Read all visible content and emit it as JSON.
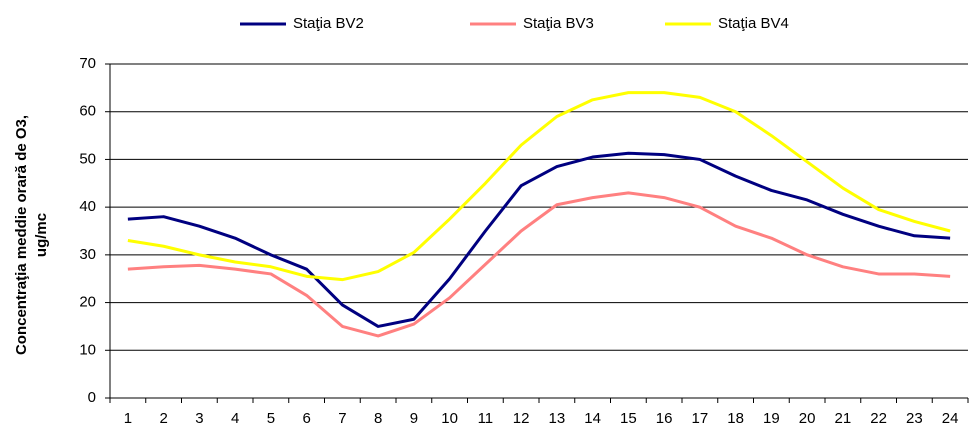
{
  "chart_data": {
    "type": "line",
    "y_label": [
      "Concentraţia meddie orară de O3,",
      "ug/mc"
    ],
    "categories": [
      "1",
      "2",
      "3",
      "4",
      "5",
      "6",
      "7",
      "8",
      "9",
      "10",
      "11",
      "12",
      "13",
      "14",
      "15",
      "16",
      "17",
      "18",
      "19",
      "20",
      "21",
      "22",
      "23",
      "24"
    ],
    "series": [
      {
        "name": "Staţia BV2",
        "color": "#000080",
        "values": [
          37.5,
          38,
          36,
          33.5,
          30,
          27,
          19.5,
          15,
          16.5,
          25,
          35,
          44.5,
          48.5,
          50.5,
          51.3,
          51,
          50,
          46.5,
          43.5,
          41.5,
          38.5,
          36,
          34,
          33.5
        ]
      },
      {
        "name": "Staţia BV3",
        "color": "#ff8080",
        "values": [
          27,
          27.5,
          27.8,
          27,
          26,
          21.5,
          15,
          13,
          15.5,
          21,
          28,
          35,
          40.5,
          42,
          43,
          42,
          40,
          36,
          33.5,
          30,
          27.5,
          26,
          26,
          25.5
        ]
      },
      {
        "name": "Staţia BV4",
        "color": "#ffff00",
        "values": [
          33,
          31.8,
          30,
          28.5,
          27.5,
          25.5,
          24.8,
          26.5,
          30.5,
          37.5,
          45,
          53,
          59,
          62.5,
          64,
          64,
          63,
          60,
          55,
          49.5,
          44,
          39.5,
          37,
          35
        ]
      }
    ],
    "ylim": [
      0,
      70
    ],
    "yticks": [
      0,
      10,
      20,
      30,
      40,
      50,
      60,
      70
    ],
    "grid": true,
    "legend": "top"
  }
}
